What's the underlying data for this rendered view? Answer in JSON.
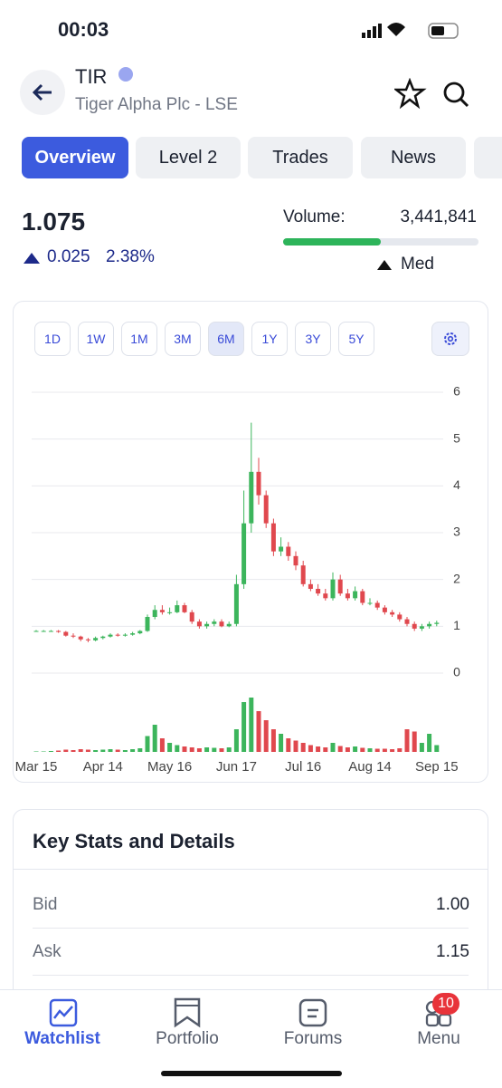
{
  "status": {
    "time": "00:03"
  },
  "header": {
    "symbol": "TIR",
    "name": "Tiger Alpha Plc - LSE"
  },
  "tabs": [
    "Overview",
    "Level 2",
    "Trades",
    "News"
  ],
  "quote": {
    "price": "1.075",
    "change": "0.025",
    "change_pct": "2.38%",
    "volume_label": "Volume:",
    "volume": "3,441,841",
    "volume_level": "Med"
  },
  "ranges": [
    "1D",
    "1W",
    "1M",
    "3M",
    "6M",
    "1Y",
    "3Y",
    "5Y"
  ],
  "chart_data": {
    "type": "candlestick",
    "categories": [
      "Mar 15",
      null,
      null,
      null,
      null,
      null,
      null,
      null,
      null,
      "Apr 14",
      null,
      null,
      null,
      null,
      null,
      null,
      null,
      null,
      "May 16",
      null,
      null,
      null,
      null,
      null,
      null,
      null,
      null,
      "Jun 17",
      null,
      null,
      null,
      null,
      null,
      null,
      null,
      null,
      "Jul 16",
      null,
      null,
      null,
      null,
      null,
      null,
      null,
      null,
      "Aug 14",
      null,
      null,
      null,
      null,
      null,
      null,
      null,
      null,
      "Sep 15"
    ],
    "open": [
      0.9,
      0.9,
      0.9,
      0.9,
      0.88,
      0.8,
      0.78,
      0.72,
      0.7,
      0.75,
      0.78,
      0.82,
      0.8,
      0.82,
      0.85,
      0.9,
      1.2,
      1.35,
      1.3,
      1.3,
      1.45,
      1.3,
      1.1,
      1.0,
      1.05,
      1.1,
      1.0,
      1.05,
      1.9,
      3.2,
      4.3,
      3.8,
      3.2,
      2.6,
      2.7,
      2.5,
      2.3,
      1.9,
      1.8,
      1.7,
      1.6,
      2.0,
      1.7,
      1.6,
      1.75,
      1.5,
      1.5,
      1.4,
      1.3,
      1.25,
      1.15,
      1.05,
      0.95,
      1.0,
      1.05
    ],
    "high": [
      0.92,
      0.92,
      0.92,
      0.92,
      0.9,
      0.85,
      0.8,
      0.75,
      0.78,
      0.8,
      0.85,
      0.85,
      0.85,
      0.88,
      0.92,
      1.25,
      1.45,
      1.45,
      1.4,
      1.55,
      1.5,
      1.35,
      1.15,
      1.1,
      1.15,
      1.15,
      1.1,
      2.1,
      3.9,
      5.35,
      4.6,
      3.9,
      3.3,
      2.9,
      2.8,
      2.6,
      2.4,
      2.0,
      1.9,
      1.8,
      2.15,
      2.1,
      1.8,
      1.85,
      1.8,
      1.6,
      1.55,
      1.45,
      1.35,
      1.3,
      1.2,
      1.1,
      1.05,
      1.1,
      1.12
    ],
    "low": [
      0.88,
      0.88,
      0.88,
      0.86,
      0.78,
      0.75,
      0.68,
      0.66,
      0.68,
      0.72,
      0.76,
      0.78,
      0.78,
      0.8,
      0.83,
      0.88,
      1.15,
      1.25,
      1.25,
      1.28,
      1.28,
      1.05,
      0.95,
      0.95,
      1.0,
      0.98,
      0.98,
      1.0,
      1.8,
      3.0,
      3.6,
      3.1,
      2.5,
      2.5,
      2.4,
      2.2,
      1.85,
      1.75,
      1.65,
      1.55,
      1.55,
      1.65,
      1.55,
      1.55,
      1.45,
      1.45,
      1.35,
      1.25,
      1.2,
      1.1,
      1.0,
      0.9,
      0.9,
      0.95,
      1.0
    ],
    "close": [
      0.9,
      0.9,
      0.9,
      0.88,
      0.8,
      0.78,
      0.72,
      0.7,
      0.75,
      0.78,
      0.82,
      0.8,
      0.82,
      0.85,
      0.9,
      1.2,
      1.35,
      1.3,
      1.3,
      1.45,
      1.3,
      1.1,
      1.0,
      1.05,
      1.1,
      1.0,
      1.05,
      1.9,
      3.2,
      4.3,
      3.8,
      3.2,
      2.6,
      2.7,
      2.5,
      2.3,
      1.9,
      1.8,
      1.7,
      1.6,
      2.0,
      1.7,
      1.6,
      1.75,
      1.5,
      1.5,
      1.4,
      1.3,
      1.25,
      1.15,
      1.05,
      0.95,
      1.0,
      1.05,
      1.075
    ],
    "volume": [
      0.1,
      0.1,
      0.2,
      0.3,
      0.5,
      0.4,
      0.6,
      0.5,
      0.4,
      0.5,
      0.6,
      0.5,
      0.4,
      0.6,
      0.8,
      3.5,
      6,
      3,
      2,
      1.5,
      1.2,
      1,
      0.8,
      1,
      0.9,
      0.8,
      1,
      5,
      11,
      12,
      9,
      7,
      5,
      4,
      3,
      2.5,
      2,
      1.5,
      1.2,
      1,
      2,
      1.3,
      1,
      1.2,
      0.9,
      0.8,
      0.7,
      0.7,
      0.6,
      0.8,
      5,
      4.5,
      2,
      4,
      1.5
    ],
    "up_color": "#3cb55c",
    "down_color": "#e0484e",
    "ylim": [
      0,
      6
    ],
    "yticks": [
      0,
      1,
      2,
      3,
      4,
      5,
      6
    ],
    "grid": true
  },
  "stats": {
    "title": "Key Stats and Details",
    "rows": [
      [
        "Bid",
        "1.00"
      ],
      [
        "Ask",
        "1.15"
      ]
    ]
  },
  "nav": {
    "items": [
      "Watchlist",
      "Portfolio",
      "Forums",
      "Menu"
    ],
    "badge": "10"
  }
}
